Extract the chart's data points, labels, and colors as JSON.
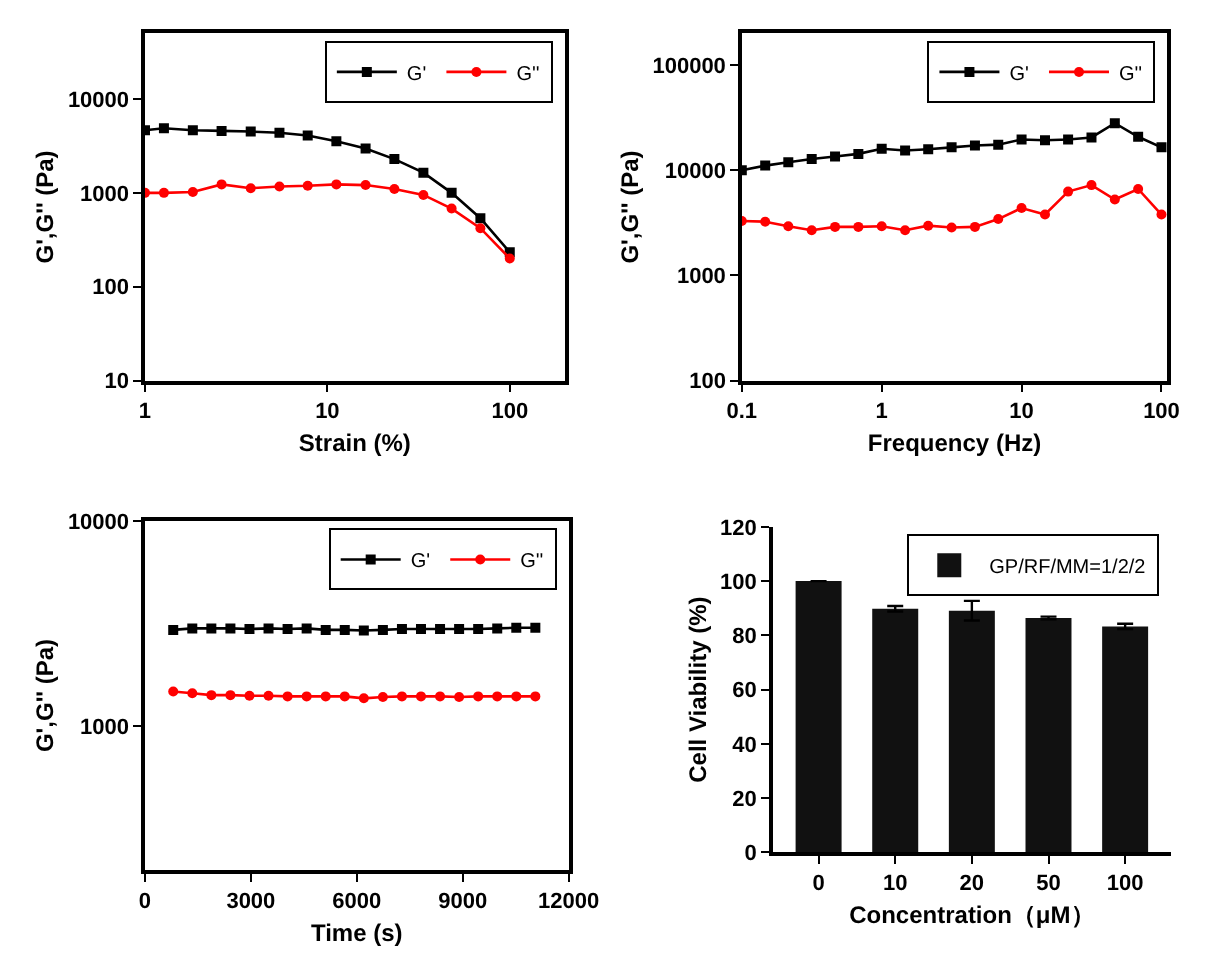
{
  "chart_data": [
    {
      "type": "line",
      "xlabel": "Strain (%)",
      "ylabel": "G',G'' (Pa)",
      "log": "xy",
      "xlim": [
        1,
        200
      ],
      "ylim": [
        10,
        50000
      ],
      "xticks": [
        1,
        10,
        100
      ],
      "yticks": [
        10,
        100,
        1000,
        10000
      ],
      "grid": false,
      "legend": "top right",
      "line_style": "solid",
      "x": [
        1,
        1.27,
        1.83,
        2.63,
        3.8,
        5.46,
        7.8,
        11.2,
        16.2,
        23.3,
        33.6,
        48,
        69,
        100
      ],
      "series": [
        {
          "name": "G'",
          "color": "#000000",
          "marker": "square",
          "values": [
            4640,
            4870,
            4640,
            4570,
            4500,
            4360,
            4080,
            3540,
            2970,
            2290,
            1640,
            1000,
            536,
            233
          ]
        },
        {
          "name": "G''",
          "color": "#ff0000",
          "marker": "circle",
          "values": [
            1000,
            1000,
            1020,
            1230,
            1120,
            1170,
            1190,
            1230,
            1210,
            1100,
            950,
            680,
            420,
            200
          ]
        }
      ]
    },
    {
      "type": "line",
      "xlabel": "Frequency (Hz)",
      "ylabel": "G',G'' (Pa)",
      "log": "xy",
      "xlim": [
        0.1,
        110
      ],
      "ylim": [
        100,
        200000
      ],
      "xticks": [
        0.1,
        1,
        10,
        100
      ],
      "yticks": [
        100,
        1000,
        10000,
        100000
      ],
      "grid": false,
      "legend": "top right",
      "line_style": "solid",
      "x": [
        0.1,
        0.147,
        0.215,
        0.316,
        0.464,
        0.681,
        1,
        1.47,
        2.15,
        3.16,
        4.64,
        6.81,
        10,
        14.7,
        21.5,
        31.6,
        46.4,
        68.1,
        100
      ],
      "series": [
        {
          "name": "G'",
          "color": "#000000",
          "marker": "square",
          "values": [
            10000,
            11060,
            11900,
            12760,
            13500,
            14300,
            16000,
            15400,
            15800,
            16500,
            17200,
            17500,
            19600,
            19300,
            19600,
            20500,
            28000,
            20800,
            16500
          ]
        },
        {
          "name": "G''",
          "color": "#ff0000",
          "marker": "circle",
          "values": [
            3290,
            3240,
            2930,
            2690,
            2890,
            2890,
            2930,
            2690,
            2970,
            2850,
            2890,
            3430,
            4370,
            3790,
            6260,
            7220,
            5270,
            6630,
            3790
          ]
        }
      ]
    },
    {
      "type": "line",
      "xlabel": "Time (s)",
      "ylabel": "G',G'' (Pa)",
      "log": "y",
      "xlim": [
        0,
        12000
      ],
      "ylim": [
        200,
        10000
      ],
      "xticks": [
        0,
        3000,
        6000,
        9000,
        12000
      ],
      "yticks": [
        1000,
        10000
      ],
      "grid": false,
      "legend": "top right",
      "line_style": "solid",
      "x": [
        800,
        1340,
        1880,
        2420,
        2960,
        3500,
        4040,
        4580,
        5120,
        5660,
        6200,
        6740,
        7280,
        7820,
        8360,
        8900,
        9440,
        9980,
        10520,
        11060
      ],
      "series": [
        {
          "name": "G'",
          "color": "#000000",
          "marker": "square",
          "values": [
            2950,
            3000,
            3000,
            3000,
            2980,
            3000,
            2980,
            3000,
            2950,
            2950,
            2930,
            2950,
            2980,
            2980,
            2980,
            2980,
            2980,
            3000,
            3020,
            3020
          ]
        },
        {
          "name": "G''",
          "color": "#ff0000",
          "marker": "circle",
          "values": [
            1480,
            1450,
            1420,
            1420,
            1410,
            1410,
            1400,
            1400,
            1400,
            1400,
            1370,
            1390,
            1400,
            1400,
            1400,
            1390,
            1400,
            1400,
            1400,
            1400
          ]
        }
      ]
    },
    {
      "type": "bar",
      "xlabel": "Concentration（μM）",
      "ylabel": "Cell Viability (%)",
      "ylim": [
        0,
        120
      ],
      "yticks": [
        0,
        20,
        40,
        60,
        80,
        100,
        120
      ],
      "grid": false,
      "legend": "top right",
      "categories": [
        "0",
        "10",
        "20",
        "50",
        "100"
      ],
      "series": [
        {
          "name": "GP/RF/MM=1/2/2",
          "color": "#111111",
          "values": [
            100,
            89.8,
            89.1,
            86.4,
            83.3
          ],
          "errors": [
            null,
            1,
            3.6,
            0.5,
            1
          ]
        }
      ]
    }
  ]
}
